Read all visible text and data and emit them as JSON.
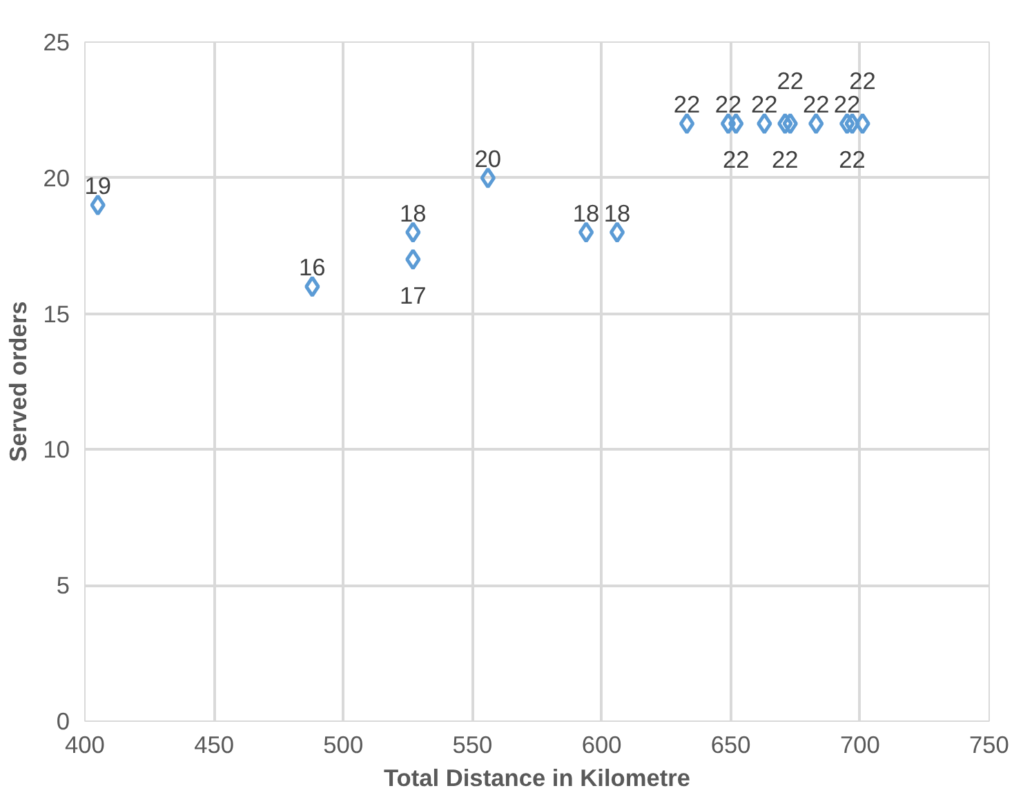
{
  "chart_data": {
    "type": "scatter",
    "xlabel": "Total Distance in Kilometre",
    "ylabel": "Served orders",
    "x": [
      405,
      488,
      527,
      527,
      556,
      594,
      606,
      633,
      649,
      652,
      663,
      671,
      673,
      683,
      695,
      697,
      701
    ],
    "values": [
      19,
      16,
      17,
      18,
      20,
      18,
      18,
      22,
      22,
      22,
      22,
      22,
      22,
      22,
      22,
      22,
      22
    ],
    "color": "#5b9bd5",
    "marker": "diamond",
    "data_labels": true,
    "grid": true,
    "xlim": [
      400,
      750
    ],
    "xticks": [
      400,
      450,
      500,
      550,
      600,
      650,
      700,
      750
    ],
    "ylim": [
      0,
      25
    ],
    "yticks": [
      0,
      5,
      10,
      15,
      20,
      25
    ]
  }
}
